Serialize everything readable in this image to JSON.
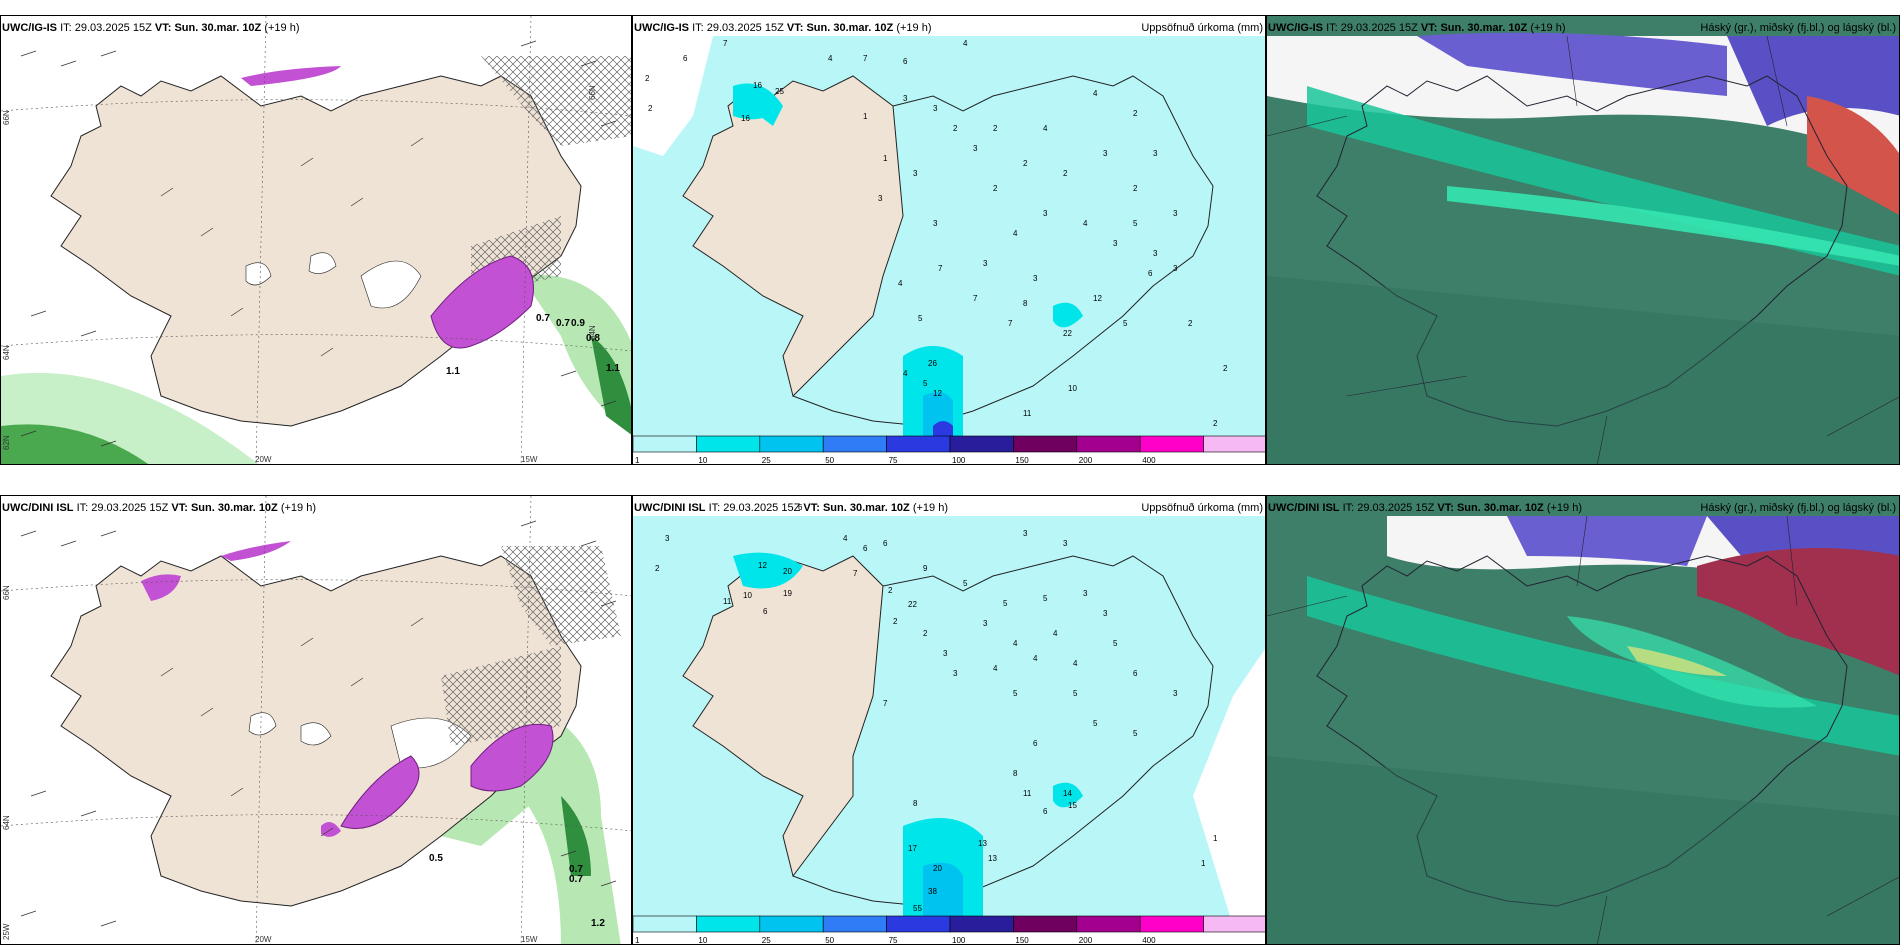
{
  "rows": [
    {
      "model": "UWC/IG-IS",
      "it_label": "IT:",
      "it_value": "29.03.2025 15Z",
      "vt_label": "VT:",
      "vt_value": "Sun. 30.mar. 10Z",
      "lead": "(+19 h)"
    },
    {
      "model": "UWC/DINI ISL",
      "it_label": "IT:",
      "it_value": "29.03.2025 15Z",
      "vt_label": "VT:",
      "vt_value": "Sun. 30.mar. 10Z",
      "lead": "(+19 h)"
    }
  ],
  "panel_titles": {
    "precip": "Uppsöfnuð úrkoma (mm)",
    "clouds": "Háský (gr.), miðský (fj.bl.) og lágský (bl.)"
  },
  "axis_labels": {
    "lon_20w": "20W",
    "lon_15w": "15W",
    "lat_66n": "66N",
    "lat_64n": "64N",
    "lat_62n": "62N",
    "lon_25w": "25W"
  },
  "precip_legend": {
    "ticks": [
      "1",
      "10",
      "25",
      "50",
      "75",
      "100",
      "150",
      "200",
      "400"
    ],
    "colors": [
      "#b9f6f8",
      "#00e5ea",
      "#00c3f0",
      "#2f7cf6",
      "#2b3ae0",
      "#2a1d9b",
      "#700060",
      "#a3008f",
      "#ff00c8",
      "#f7b9f3"
    ]
  },
  "colors": {
    "land": "#efe3d5",
    "sea": "#ffffff",
    "precip_light": "#b9f6f8",
    "precip_mid": "#00e5ea",
    "magenta": "#c251d3",
    "green_light": "#c8f0c8",
    "green_dark": "#2f8f3e",
    "cloud_base": "#3d7f68"
  },
  "precip_values_top": [
    "6",
    "7",
    "2",
    "4",
    "7",
    "6",
    "4",
    "2",
    "16",
    "25",
    "16",
    "1",
    "3",
    "3",
    "2",
    "1",
    "3",
    "3",
    "2",
    "4",
    "4",
    "2",
    "3",
    "2",
    "2",
    "3",
    "2",
    "3",
    "3",
    "2",
    "3",
    "4",
    "3",
    "4",
    "3",
    "5",
    "3",
    "3",
    "6",
    "4",
    "7",
    "3",
    "7",
    "5",
    "7",
    "3",
    "8",
    "12",
    "22",
    "5",
    "2",
    "26",
    "4",
    "5",
    "10",
    "11",
    "2",
    "2",
    "12"
  ],
  "precip_values_bottom": [
    "6",
    "3",
    "4",
    "6",
    "6",
    "3",
    "3",
    "2",
    "12",
    "20",
    "6",
    "10",
    "11",
    "19",
    "7",
    "9",
    "2",
    "22",
    "2",
    "5",
    "3",
    "2",
    "3",
    "5",
    "5",
    "3",
    "3",
    "4",
    "4",
    "3",
    "5",
    "4",
    "4",
    "4",
    "6",
    "3",
    "5",
    "5",
    "7",
    "5",
    "5",
    "6",
    "8",
    "11",
    "14",
    "15",
    "6",
    "8",
    "13",
    "13",
    "17",
    "20",
    "38",
    "55",
    "1",
    "1"
  ],
  "wind_values_top": [
    "0.7",
    "0.7",
    "0.9",
    "0.8",
    "1.1",
    "1.1"
  ],
  "wind_values_bottom": [
    "0.7",
    "0.7",
    "1.2",
    "0.5"
  ]
}
